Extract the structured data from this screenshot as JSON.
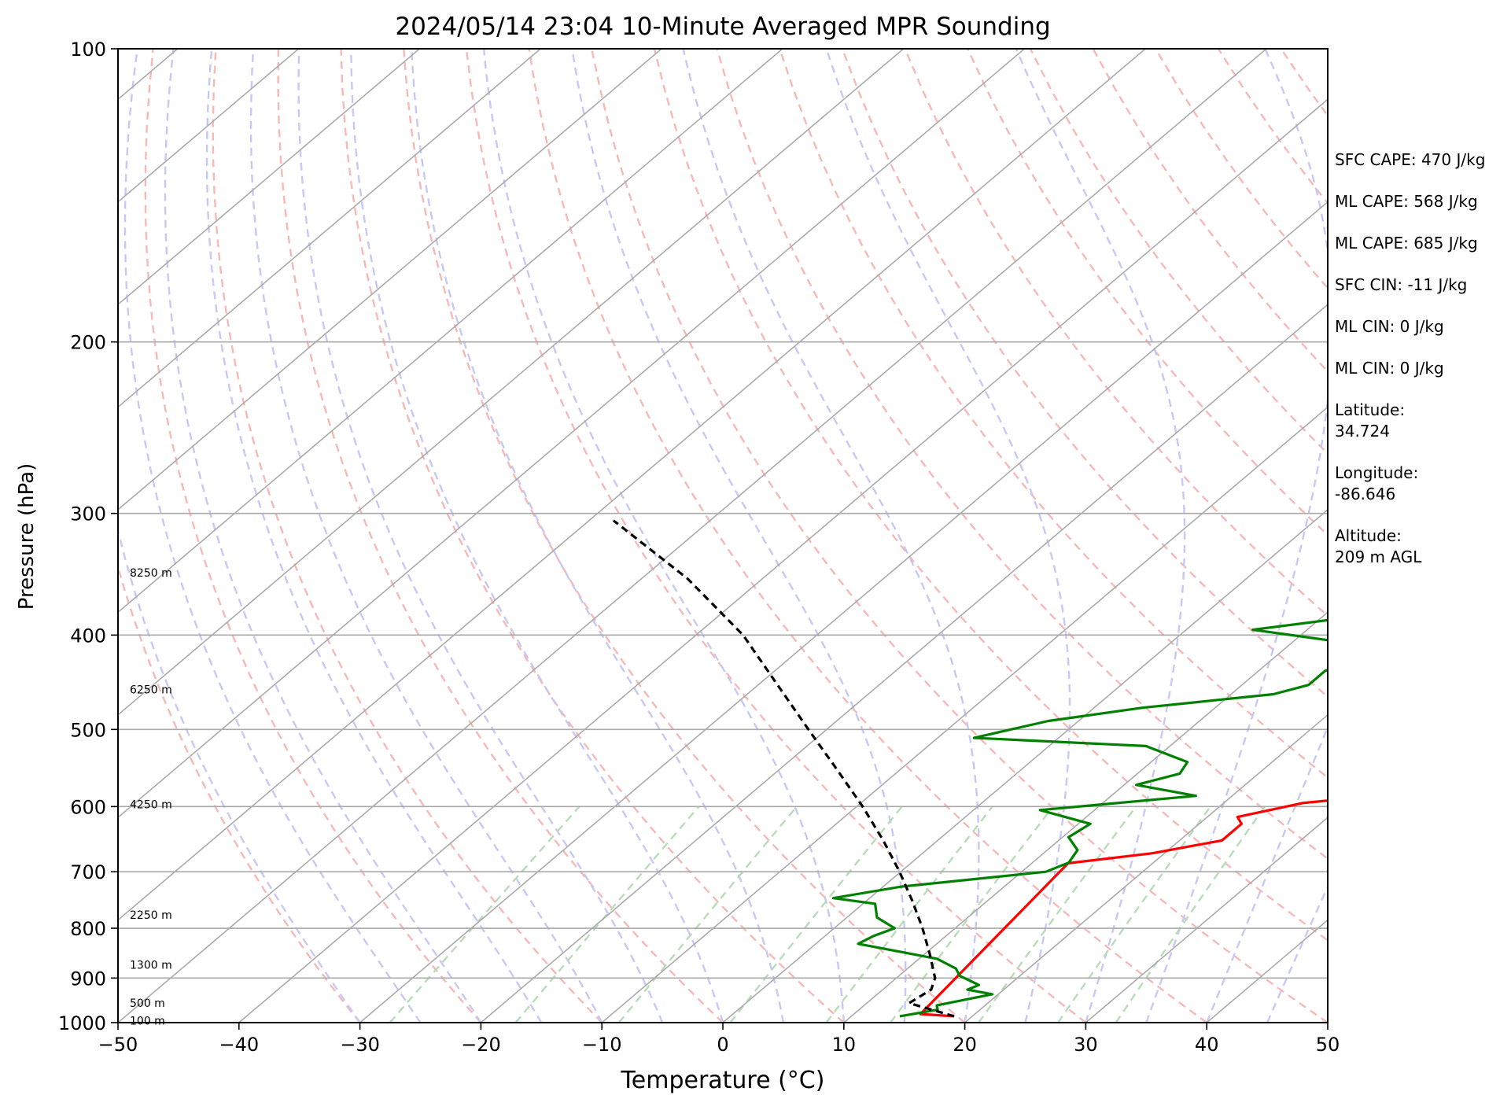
{
  "chart_data": {
    "type": "line",
    "title": "2024/05/14 23:04 10-Minute Averaged MPR Sounding",
    "xlabel": "Temperature (°C)",
    "ylabel": "Pressure (hPa)",
    "xlim": [
      -50,
      50
    ],
    "ylim": [
      1000,
      100
    ],
    "y_scale": "log",
    "skew": "skew-T (isotherms slanted)",
    "x_ticks": [
      "−50",
      "−40",
      "−30",
      "−20",
      "−10",
      "0",
      "10",
      "20",
      "30",
      "40",
      "50"
    ],
    "y_ticks": [
      "100",
      "200",
      "300",
      "400",
      "500",
      "600",
      "700",
      "800",
      "900",
      "1000"
    ],
    "grid": true,
    "height_labels": [
      {
        "p": 345,
        "text": "8250 m"
      },
      {
        "p": 455,
        "text": "6250 m"
      },
      {
        "p": 597,
        "text": "4250 m"
      },
      {
        "p": 775,
        "text": "2250 m"
      },
      {
        "p": 872,
        "text": "1300 m"
      },
      {
        "p": 955,
        "text": "500 m"
      },
      {
        "p": 995,
        "text": "100 m"
      }
    ],
    "series": [
      {
        "color": "#ff0000",
        "values_p_t": [
          [
            985,
            18.5
          ],
          [
            980,
            15.5
          ],
          [
            686,
            13.0
          ],
          [
            670,
            19.0
          ],
          [
            650,
            23.5
          ],
          [
            625,
            23.5
          ],
          [
            615,
            22.5
          ],
          [
            595,
            26.5
          ],
          [
            585,
            32.0
          ],
          [
            565,
            34.0
          ],
          [
            550,
            38.5
          ],
          [
            525,
            42.0
          ],
          [
            515,
            39.0
          ],
          [
            505,
            36.5
          ],
          [
            490,
            40.5
          ],
          [
            465,
            41.5
          ],
          [
            440,
            42.5
          ],
          [
            420,
            42.5
          ],
          [
            405,
            43.5
          ],
          [
            385,
            44.5
          ],
          [
            375,
            45.0
          ],
          [
            370,
            45.5
          ],
          [
            360,
            51.5
          ],
          [
            350,
            53.5
          ]
        ]
      },
      {
        "color": "#008000",
        "values_p_t": [
          [
            985,
            14.0
          ],
          [
            970,
            16.5
          ],
          [
            960,
            16.0
          ],
          [
            935,
            19.5
          ],
          [
            925,
            17.0
          ],
          [
            915,
            17.5
          ],
          [
            895,
            15.0
          ],
          [
            880,
            14.0
          ],
          [
            860,
            11.5
          ],
          [
            830,
            3.5
          ],
          [
            815,
            4.0
          ],
          [
            800,
            5.0
          ],
          [
            780,
            2.5
          ],
          [
            755,
            1.0
          ],
          [
            745,
            -3.0
          ],
          [
            725,
            1.5
          ],
          [
            700,
            12.0
          ],
          [
            685,
            13.0
          ],
          [
            665,
            12.5
          ],
          [
            645,
            10.5
          ],
          [
            625,
            11.0
          ],
          [
            605,
            5.5
          ],
          [
            585,
            17.0
          ],
          [
            570,
            11.0
          ],
          [
            555,
            13.5
          ],
          [
            540,
            13.0
          ],
          [
            520,
            8.0
          ],
          [
            510,
            -7.0
          ],
          [
            490,
            -2.5
          ],
          [
            475,
            4.0
          ],
          [
            460,
            13.5
          ],
          [
            450,
            15.5
          ],
          [
            435,
            15.5
          ],
          [
            425,
            18.5
          ],
          [
            410,
            16.5
          ],
          [
            395,
            5.5
          ],
          [
            380,
            14.5
          ],
          [
            370,
            18.5
          ],
          [
            360,
            19.0
          ],
          [
            347,
            21.0
          ],
          [
            340,
            14.0
          ],
          [
            330,
            10.0
          ],
          [
            320,
            18.0
          ],
          [
            315,
            14.5
          ],
          [
            305,
            21.5
          ]
        ]
      },
      {
        "color": "#000000",
        "dashed": true,
        "values_p_t": [
          [
            985,
            18.5
          ],
          [
            955,
            13.5
          ],
          [
            925,
            14.0
          ],
          [
            900,
            13.2
          ],
          [
            850,
            10.4
          ],
          [
            800,
            7.3
          ],
          [
            750,
            3.8
          ],
          [
            700,
            -0.1
          ],
          [
            650,
            -4.5
          ],
          [
            600,
            -9.5
          ],
          [
            550,
            -15.2
          ],
          [
            500,
            -21.5
          ],
          [
            450,
            -28.4
          ],
          [
            400,
            -36.1
          ],
          [
            350,
            -46.2
          ],
          [
            305,
            -58.0
          ]
        ]
      }
    ]
  },
  "side_panel": [
    "SFC CAPE: 470 J/kg",
    "ML CAPE: 568 J/kg",
    "ML CAPE: 685 J/kg",
    "SFC CIN: -11 J/kg",
    "ML CIN: 0 J/kg",
    "ML CIN: 0 J/kg",
    "Latitude:\n34.724",
    "Longitude:\n-86.646",
    "Altitude:\n209 m AGL"
  ]
}
